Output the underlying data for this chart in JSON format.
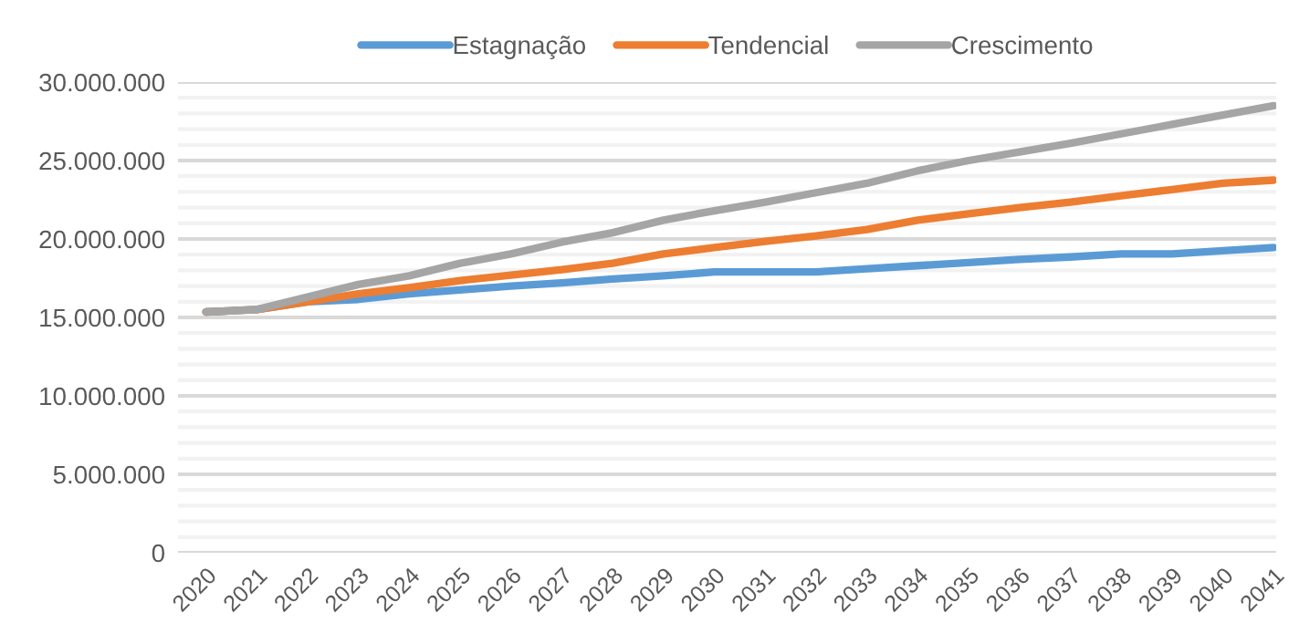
{
  "chart_data": {
    "type": "line",
    "categories": [
      "2020",
      "2021",
      "2022",
      "2023",
      "2024",
      "2025",
      "2026",
      "2027",
      "2028",
      "2029",
      "2030",
      "2031",
      "2032",
      "2033",
      "2034",
      "2035",
      "2036",
      "2037",
      "2038",
      "2039",
      "2040",
      "2041"
    ],
    "series": [
      {
        "name": "Estagnação",
        "color": "#5b9bd5",
        "values": [
          15350000,
          15500000,
          16000000,
          16150000,
          16500000,
          16750000,
          17000000,
          17200000,
          17450000,
          17650000,
          17900000,
          17900000,
          17900000,
          18100000,
          18300000,
          18500000,
          18700000,
          18850000,
          19050000,
          19050000,
          19250000,
          19450000
        ]
      },
      {
        "name": "Tendencial",
        "color": "#ed7d31",
        "values": [
          15350000,
          15500000,
          16000000,
          16500000,
          16900000,
          17350000,
          17700000,
          18050000,
          18450000,
          19050000,
          19450000,
          19850000,
          20200000,
          20600000,
          21200000,
          21600000,
          22000000,
          22350000,
          22750000,
          23150000,
          23550000,
          23750000
        ]
      },
      {
        "name": "Crescimento",
        "color": "#a5a5a5",
        "values": [
          15350000,
          15500000,
          16300000,
          17100000,
          17650000,
          18450000,
          19050000,
          19800000,
          20400000,
          21200000,
          21800000,
          22350000,
          22950000,
          23550000,
          24350000,
          25000000,
          25550000,
          26100000,
          26700000,
          27300000,
          27900000,
          28500000
        ]
      }
    ],
    "ylim": [
      0,
      30000000
    ],
    "yticks": [
      {
        "value": 0,
        "label": "0"
      },
      {
        "value": 1000000,
        "label": null
      },
      {
        "value": 2000000,
        "label": null
      },
      {
        "value": 3000000,
        "label": null
      },
      {
        "value": 4000000,
        "label": null
      },
      {
        "value": 5000000,
        "label": "5.000.000"
      },
      {
        "value": 6000000,
        "label": null
      },
      {
        "value": 7000000,
        "label": null
      },
      {
        "value": 8000000,
        "label": null
      },
      {
        "value": 9000000,
        "label": null
      },
      {
        "value": 10000000,
        "label": "10.000.000"
      },
      {
        "value": 11000000,
        "label": null
      },
      {
        "value": 12000000,
        "label": null
      },
      {
        "value": 13000000,
        "label": null
      },
      {
        "value": 14000000,
        "label": null
      },
      {
        "value": 15000000,
        "label": "15.000.000"
      },
      {
        "value": 16000000,
        "label": null
      },
      {
        "value": 17000000,
        "label": null
      },
      {
        "value": 18000000,
        "label": null
      },
      {
        "value": 19000000,
        "label": null
      },
      {
        "value": 20000000,
        "label": "20.000.000"
      },
      {
        "value": 21000000,
        "label": null
      },
      {
        "value": 22000000,
        "label": null
      },
      {
        "value": 23000000,
        "label": null
      },
      {
        "value": 24000000,
        "label": null
      },
      {
        "value": 25000000,
        "label": "25.000.000"
      },
      {
        "value": 26000000,
        "label": null
      },
      {
        "value": 27000000,
        "label": null
      },
      {
        "value": 28000000,
        "label": null
      },
      {
        "value": 29000000,
        "label": null
      },
      {
        "value": 30000000,
        "label": "30.000.000"
      }
    ],
    "grid": "y",
    "legend": "top",
    "marker": "none",
    "line_style": "solid"
  }
}
